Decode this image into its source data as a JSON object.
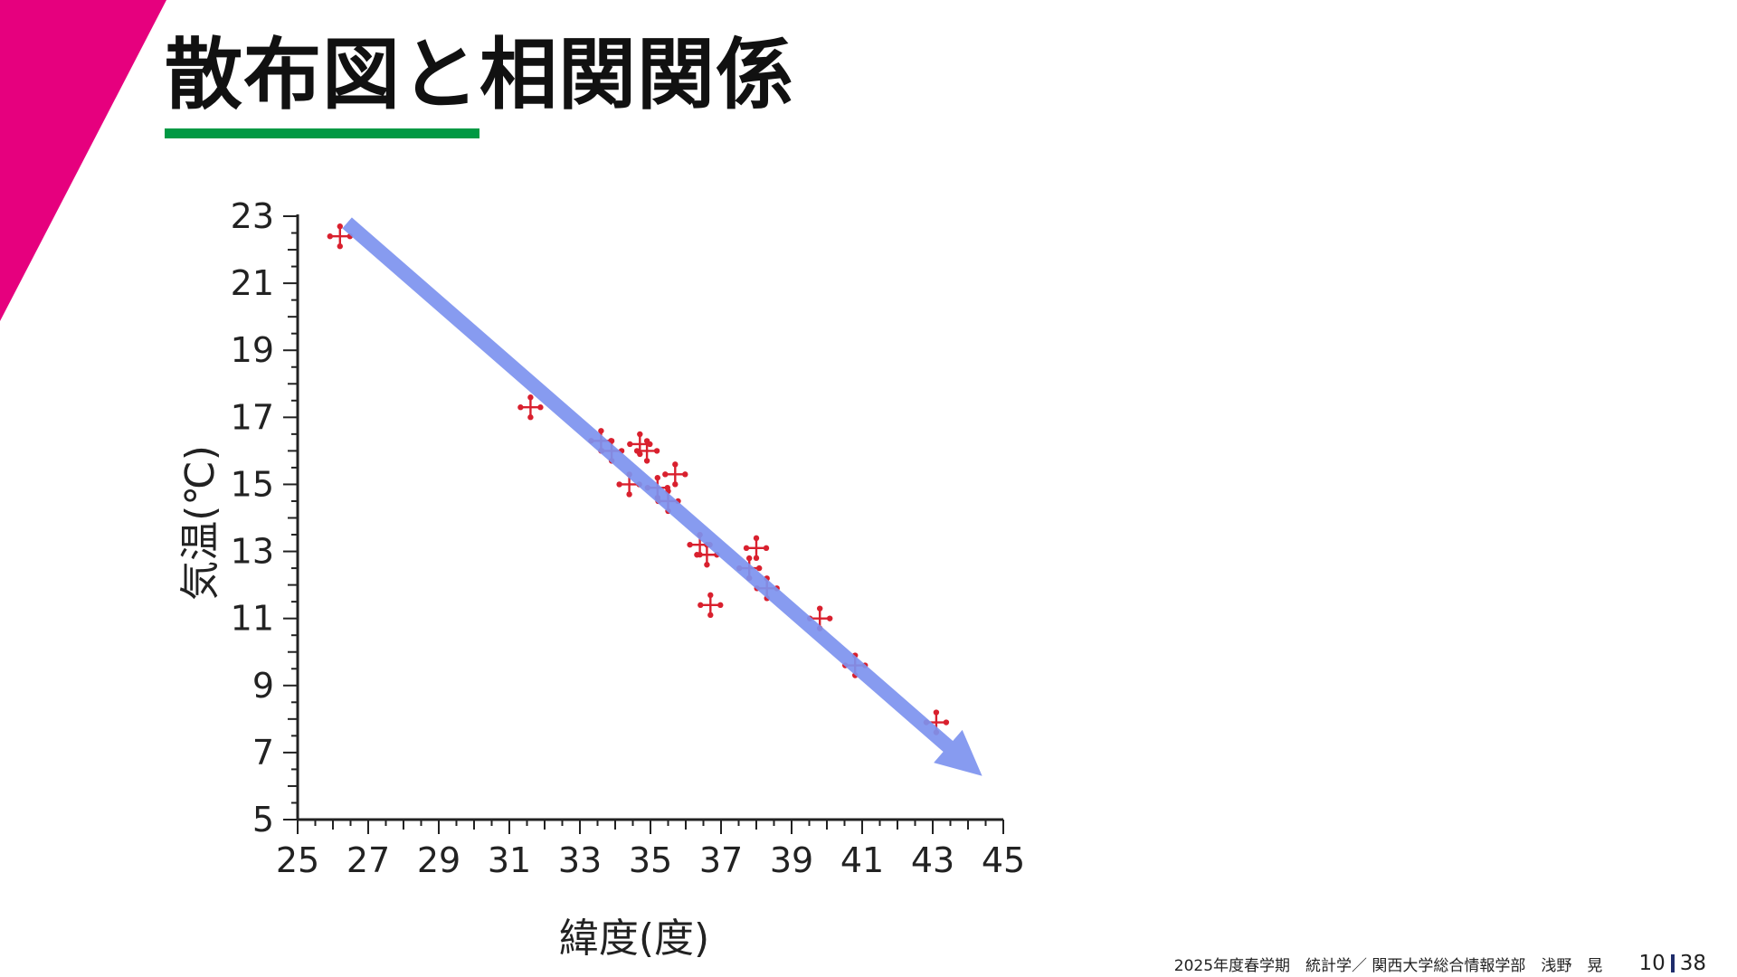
{
  "slide": {
    "title": "散布図と相関関係",
    "accent_color": "#e6007e",
    "underline_color": "#009944"
  },
  "chart_data": {
    "type": "scatter",
    "xlabel": "緯度(度)",
    "ylabel": "気温(℃)",
    "xlim": [
      25,
      45
    ],
    "ylim": [
      5,
      23
    ],
    "x_ticks": [
      "25",
      "27",
      "29",
      "31",
      "33",
      "35",
      "37",
      "39",
      "41",
      "43",
      "45"
    ],
    "y_ticks": [
      "5",
      "7",
      "9",
      "11",
      "13",
      "15",
      "17",
      "19",
      "21",
      "23"
    ],
    "marker_color": "#d9202e",
    "series": [
      {
        "points": [
          {
            "x": 26.2,
            "y": 22.4
          },
          {
            "x": 31.6,
            "y": 17.3
          },
          {
            "x": 33.6,
            "y": 16.3
          },
          {
            "x": 33.9,
            "y": 16.0
          },
          {
            "x": 34.7,
            "y": 16.2
          },
          {
            "x": 34.9,
            "y": 16.0
          },
          {
            "x": 35.7,
            "y": 15.3
          },
          {
            "x": 34.4,
            "y": 15.0
          },
          {
            "x": 35.2,
            "y": 14.9
          },
          {
            "x": 35.5,
            "y": 14.5
          },
          {
            "x": 36.4,
            "y": 13.2
          },
          {
            "x": 36.6,
            "y": 12.9
          },
          {
            "x": 38.0,
            "y": 13.1
          },
          {
            "x": 37.8,
            "y": 12.5
          },
          {
            "x": 38.3,
            "y": 11.9
          },
          {
            "x": 36.7,
            "y": 11.4
          },
          {
            "x": 39.8,
            "y": 11.0
          },
          {
            "x": 40.8,
            "y": 9.6
          },
          {
            "x": 43.1,
            "y": 7.9
          }
        ]
      }
    ],
    "trend_arrow": {
      "color": "#7d93ef",
      "from": {
        "x": 26.4,
        "y": 22.8
      },
      "to": {
        "x": 44.4,
        "y": 6.3
      }
    }
  },
  "footer": {
    "text": "2025年度春学期　統計学／ 関西大学総合情報学部　浅野　晃",
    "page_current": "10",
    "page_total": "38",
    "divider_color": "#1f2d6b"
  }
}
